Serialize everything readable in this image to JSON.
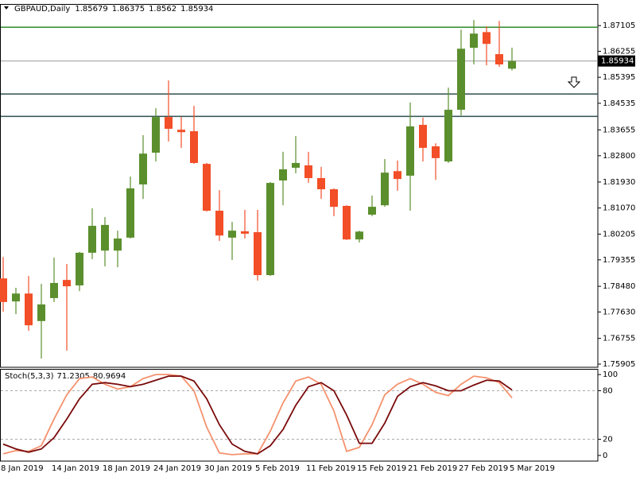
{
  "chart_data": [
    {
      "type": "candlestick",
      "title": "GBPAUD,Daily",
      "categories": [
        "8 Jan 2019",
        null,
        null,
        null,
        "14 Jan 2019",
        null,
        null,
        null,
        "18 Jan 2019",
        null,
        null,
        null,
        "24 Jan 2019",
        null,
        null,
        null,
        "30 Jan 2019",
        null,
        null,
        null,
        "5 Feb 2019",
        null,
        null,
        null,
        "11 Feb 2019",
        null,
        null,
        null,
        "15 Feb 2019",
        null,
        null,
        null,
        "21 Feb 2019",
        null,
        null,
        null,
        "27 Feb 2019",
        null,
        null,
        null,
        "5 Mar 2019"
      ],
      "open": [
        1.7874,
        1.7798,
        1.7824,
        1.7733,
        1.7809,
        1.7869,
        1.7851,
        1.7959,
        1.7966,
        1.7966,
        1.8009,
        1.8185,
        1.829,
        1.8408,
        1.8366,
        1.8361,
        1.8253,
        1.8098,
        1.8009,
        1.803,
        1.8027,
        1.7885,
        1.8198,
        1.824,
        1.8248,
        1.8206,
        1.8169,
        1.8114,
        1.8003,
        1.8085,
        1.8116,
        1.8229,
        1.8214,
        1.8382,
        1.8311,
        1.8261,
        1.8432,
        1.8637,
        1.8689,
        1.8616,
        1.85679
      ],
      "high": [
        1.7945,
        1.7843,
        1.7882,
        1.7856,
        1.7943,
        1.7922,
        1.7962,
        1.8106,
        1.8077,
        1.8032,
        1.8211,
        1.8348,
        1.8437,
        1.8529,
        1.8408,
        1.8445,
        1.8256,
        1.8166,
        1.8061,
        1.8101,
        1.8101,
        1.8193,
        1.8293,
        1.8345,
        1.8293,
        1.8243,
        1.8172,
        1.8116,
        1.8032,
        1.8148,
        1.8269,
        1.8264,
        1.8456,
        1.8406,
        1.8321,
        1.8505,
        1.8697,
        1.8729,
        1.8708,
        1.8726,
        1.86375
      ],
      "low": [
        1.7764,
        1.7756,
        1.7701,
        1.7609,
        1.7796,
        1.7635,
        1.7832,
        1.7938,
        1.7914,
        1.7911,
        1.8006,
        1.8137,
        1.8261,
        1.8327,
        1.8306,
        1.8253,
        1.8095,
        1.7998,
        1.7935,
        1.8006,
        1.7867,
        1.7882,
        1.8116,
        1.8222,
        1.819,
        1.8137,
        1.808,
        1.8001,
        1.7993,
        1.808,
        1.8111,
        1.8164,
        1.8098,
        1.8261,
        1.82,
        1.8256,
        1.8413,
        1.8582,
        1.8579,
        1.8574,
        1.8562
      ],
      "close": [
        1.7796,
        1.7824,
        1.7719,
        1.7788,
        1.7859,
        1.7848,
        1.7959,
        1.8048,
        1.8051,
        1.8006,
        1.8172,
        1.8287,
        1.8408,
        1.8369,
        1.8358,
        1.8256,
        1.8098,
        1.8016,
        1.8032,
        1.8022,
        1.7885,
        1.819,
        1.8235,
        1.8256,
        1.8206,
        1.8169,
        1.8111,
        1.8003,
        1.8029,
        1.8111,
        1.8224,
        1.8203,
        1.8377,
        1.8306,
        1.8272,
        1.8432,
        1.8634,
        1.8684,
        1.865,
        1.8582,
        1.85934
      ],
      "up_color": "#5b8f2d",
      "down_color": "#f24e27",
      "ylim": [
        1.758,
        1.8782
      ],
      "yticks": [
        1.87105,
        1.86255,
        1.85395,
        1.84535,
        1.83655,
        {
          "value": 1.828,
          "label": "1.82800"
        },
        {
          "value": 1.8193,
          "label": "1.81930"
        },
        {
          "value": 1.8107,
          "label": "1.81070"
        },
        1.80205,
        1.79355,
        {
          "value": 1.7848,
          "label": "1.78480"
        },
        {
          "value": 1.7763,
          "label": "1.77630"
        },
        1.76755,
        1.75905
      ],
      "hlines": [
        {
          "value": 1.8705,
          "color": "#2e8b2e"
        },
        {
          "value": 1.8484,
          "color": "#2f4f4f"
        },
        {
          "value": 1.841,
          "color": "#2f4f4f"
        }
      ]
    },
    {
      "type": "line",
      "title": "Stoch(5,3,3)",
      "series": [
        {
          "color": "#f5926e",
          "values": [
            2,
            6,
            5,
            12,
            45,
            75,
            95,
            97,
            88,
            82,
            85,
            95,
            100,
            100,
            98,
            80,
            35,
            3,
            1,
            2,
            2,
            30,
            65,
            92,
            97,
            88,
            55,
            5,
            10,
            38,
            75,
            88,
            95,
            88,
            78,
            74,
            88,
            98,
            96,
            90,
            71.2305
          ]
        },
        {
          "color": "#7a0a0a",
          "values": [
            14,
            8,
            4,
            8,
            22,
            45,
            70,
            88,
            90,
            88,
            85,
            88,
            93,
            98,
            98,
            92,
            70,
            38,
            14,
            5,
            2,
            12,
            32,
            62,
            85,
            90,
            80,
            50,
            15,
            15,
            40,
            73,
            85,
            90,
            86,
            80,
            80,
            87,
            93,
            92,
            80.9694
          ]
        }
      ],
      "ylim": [
        -7,
        107
      ],
      "yticks": [
        0,
        20,
        80,
        100
      ],
      "levels": [
        80,
        20
      ]
    }
  ]
}
